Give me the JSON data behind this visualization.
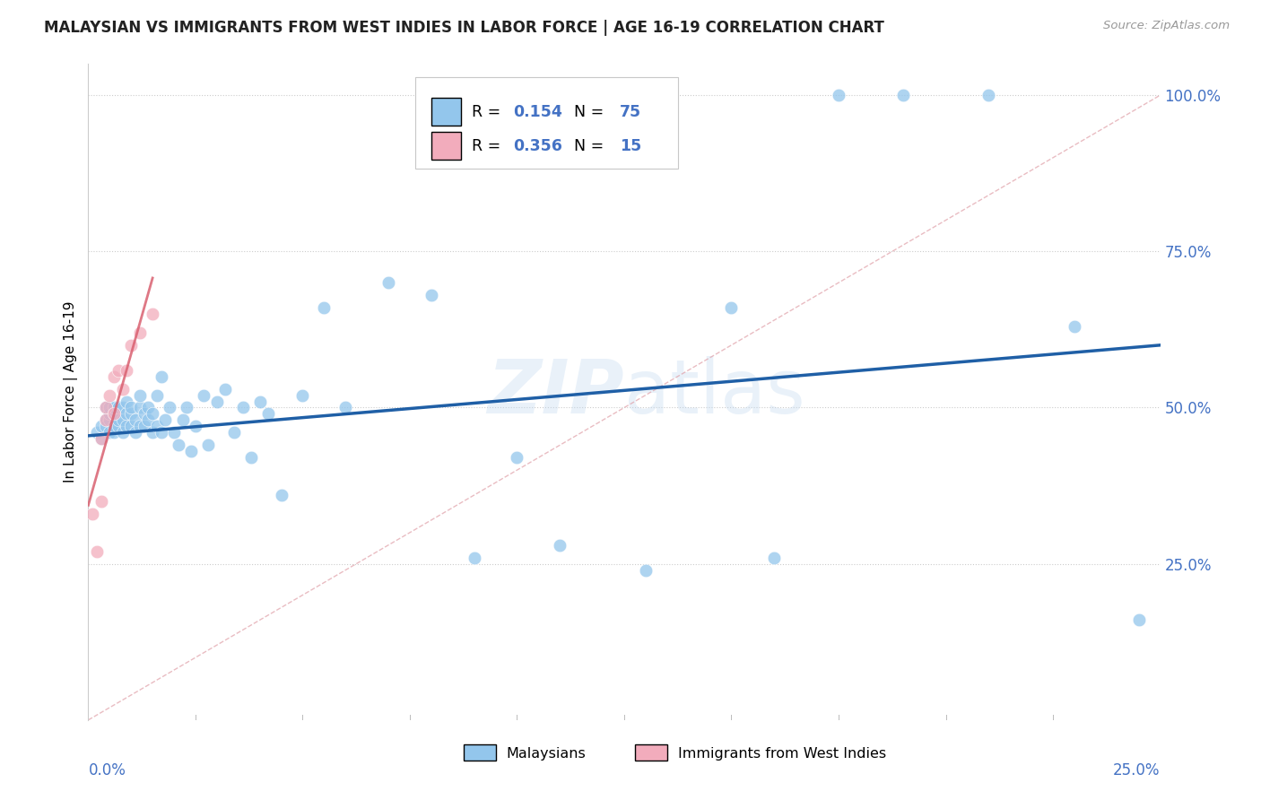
{
  "title": "MALAYSIAN VS IMMIGRANTS FROM WEST INDIES IN LABOR FORCE | AGE 16-19 CORRELATION CHART",
  "source": "Source: ZipAtlas.com",
  "ylabel": "In Labor Force | Age 16-19",
  "xlim": [
    0.0,
    0.25
  ],
  "ylim": [
    0.0,
    1.05
  ],
  "watermark": "ZIPatlas",
  "legend_blue_R": "0.154",
  "legend_blue_N": "75",
  "legend_pink_R": "0.356",
  "legend_pink_N": "15",
  "blue_color": "#93C6EC",
  "pink_color": "#F2ACBC",
  "trend_blue_color": "#1F5FA6",
  "trend_pink_color": "#D96070",
  "trend_diag_color": "#E0A0A8",
  "ytick_vals": [
    0.25,
    0.5,
    0.75,
    1.0
  ],
  "ytick_labels": [
    "25.0%",
    "50.0%",
    "75.0%",
    "100.0%"
  ],
  "blue_x": [
    0.002,
    0.003,
    0.003,
    0.004,
    0.004,
    0.004,
    0.005,
    0.005,
    0.005,
    0.005,
    0.006,
    0.006,
    0.006,
    0.006,
    0.007,
    0.007,
    0.007,
    0.008,
    0.008,
    0.008,
    0.009,
    0.009,
    0.009,
    0.01,
    0.01,
    0.01,
    0.011,
    0.011,
    0.012,
    0.012,
    0.012,
    0.013,
    0.013,
    0.014,
    0.014,
    0.015,
    0.015,
    0.016,
    0.016,
    0.017,
    0.017,
    0.018,
    0.019,
    0.02,
    0.021,
    0.022,
    0.023,
    0.024,
    0.025,
    0.027,
    0.028,
    0.03,
    0.032,
    0.034,
    0.036,
    0.038,
    0.04,
    0.042,
    0.045,
    0.05,
    0.055,
    0.06,
    0.07,
    0.08,
    0.09,
    0.1,
    0.11,
    0.13,
    0.15,
    0.16,
    0.175,
    0.19,
    0.21,
    0.23,
    0.245
  ],
  "blue_y": [
    0.46,
    0.47,
    0.45,
    0.48,
    0.5,
    0.47,
    0.46,
    0.48,
    0.49,
    0.5,
    0.46,
    0.47,
    0.49,
    0.5,
    0.47,
    0.48,
    0.5,
    0.46,
    0.48,
    0.5,
    0.47,
    0.49,
    0.51,
    0.47,
    0.49,
    0.5,
    0.46,
    0.48,
    0.47,
    0.5,
    0.52,
    0.47,
    0.49,
    0.48,
    0.5,
    0.46,
    0.49,
    0.52,
    0.47,
    0.46,
    0.55,
    0.48,
    0.5,
    0.46,
    0.44,
    0.48,
    0.5,
    0.43,
    0.47,
    0.52,
    0.44,
    0.51,
    0.53,
    0.46,
    0.5,
    0.42,
    0.51,
    0.49,
    0.36,
    0.52,
    0.66,
    0.5,
    0.7,
    0.68,
    0.26,
    0.42,
    0.28,
    0.24,
    0.66,
    0.26,
    1.0,
    1.0,
    1.0,
    0.63,
    0.16
  ],
  "pink_x": [
    0.001,
    0.002,
    0.003,
    0.003,
    0.004,
    0.004,
    0.005,
    0.006,
    0.006,
    0.007,
    0.008,
    0.009,
    0.01,
    0.012,
    0.015
  ],
  "pink_y": [
    0.33,
    0.27,
    0.35,
    0.45,
    0.48,
    0.5,
    0.52,
    0.49,
    0.55,
    0.56,
    0.53,
    0.56,
    0.6,
    0.62,
    0.65
  ]
}
